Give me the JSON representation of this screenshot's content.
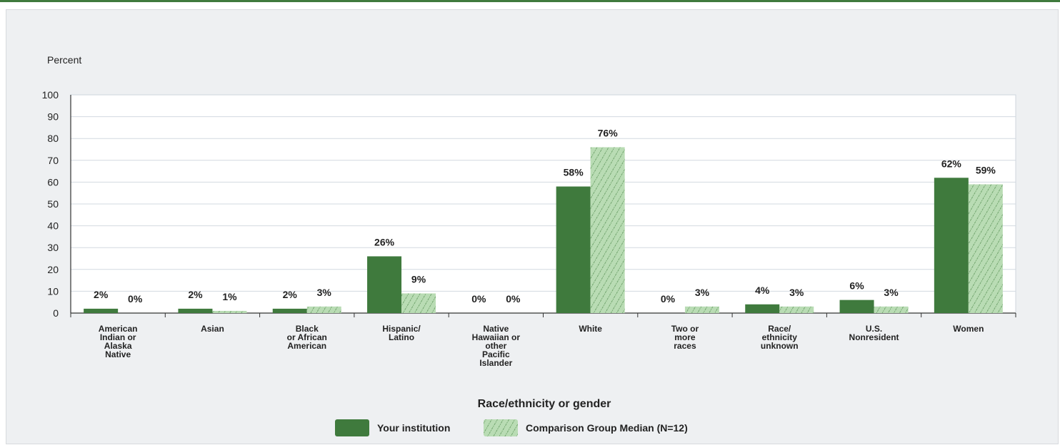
{
  "chart_data": {
    "type": "bar",
    "ylabel": "Percent",
    "xlabel": "Race/ethnicity or gender",
    "ylim": [
      0,
      100
    ],
    "yticks": [
      0,
      10,
      20,
      30,
      40,
      50,
      60,
      70,
      80,
      90,
      100
    ],
    "grid": true,
    "legend_placement": "bottom-center",
    "categories": [
      [
        "American",
        "Indian or",
        "Alaska",
        "Native"
      ],
      [
        "Asian"
      ],
      [
        "Black",
        "or African",
        "American"
      ],
      [
        "Hispanic/",
        "Latino"
      ],
      [
        "Native",
        "Hawaiian or",
        "other",
        "Pacific",
        "Islander"
      ],
      [
        "White"
      ],
      [
        "Two or",
        "more",
        "races"
      ],
      [
        "Race/",
        "ethnicity",
        "unknown"
      ],
      [
        "U.S.",
        "Nonresident"
      ],
      [
        "Women"
      ]
    ],
    "series": [
      {
        "name": "Your institution",
        "color": "#3f7a3d",
        "values": [
          2,
          2,
          2,
          26,
          0,
          58,
          0,
          4,
          6,
          62
        ],
        "labels": [
          "2%",
          "2%",
          "2%",
          "26%",
          "0%",
          "58%",
          "0%",
          "4%",
          "6%",
          "62%"
        ]
      },
      {
        "name": "Comparison Group Median (N=12)",
        "color": "#b9dcb4",
        "pattern": "hatched",
        "values": [
          0,
          1,
          3,
          9,
          0,
          76,
          3,
          3,
          3,
          59
        ],
        "labels": [
          "0%",
          "1%",
          "3%",
          "9%",
          "0%",
          "76%",
          "3%",
          "3%",
          "3%",
          "59%"
        ]
      }
    ]
  }
}
